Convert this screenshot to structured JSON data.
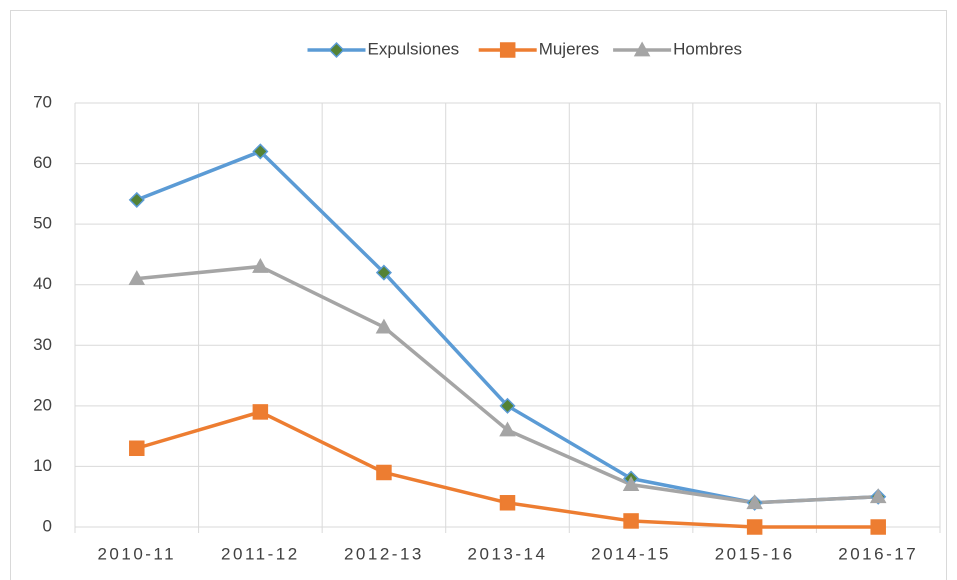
{
  "chart_data": {
    "type": "line",
    "categories": [
      "2010-11",
      "2011-12",
      "2012-13",
      "2013-14",
      "2014-15",
      "2015-16",
      "2016-17"
    ],
    "series": [
      {
        "name": "Expulsiones",
        "color": "#5b9bd5",
        "marker": "diamond",
        "marker_color": "#548235",
        "values": [
          54,
          62,
          42,
          20,
          8,
          4,
          5
        ]
      },
      {
        "name": "Mujeres",
        "color": "#ed7d31",
        "marker": "square",
        "marker_color": "#ed7d31",
        "values": [
          13,
          19,
          9,
          4,
          1,
          0,
          0
        ]
      },
      {
        "name": "Hombres",
        "color": "#a5a5a5",
        "marker": "triangle",
        "marker_color": "#a5a5a5",
        "values": [
          41,
          43,
          33,
          16,
          7,
          4,
          5
        ]
      }
    ],
    "ylim": [
      0,
      70
    ],
    "yticks": [
      0,
      10,
      20,
      30,
      40,
      50,
      60,
      70
    ],
    "grid": true,
    "legend": "top"
  }
}
